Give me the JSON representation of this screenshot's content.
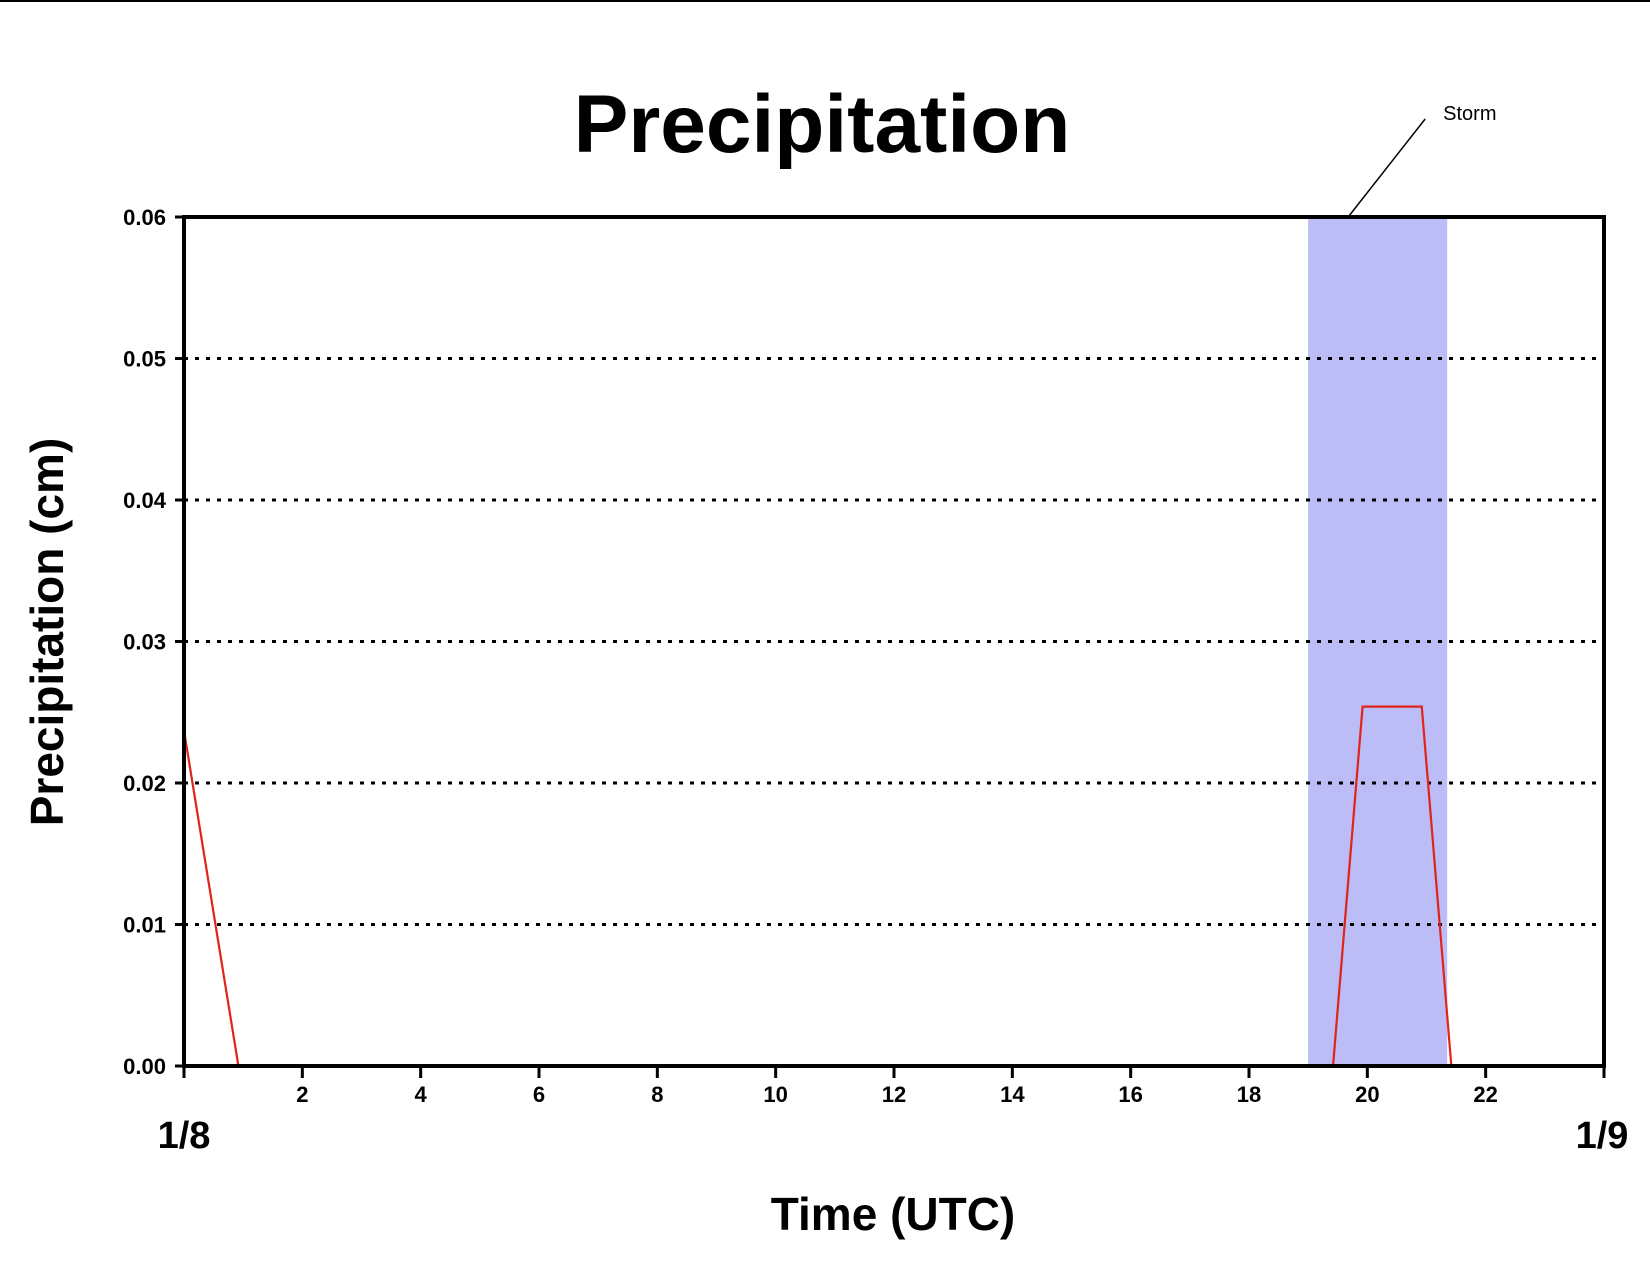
{
  "chart_data": {
    "type": "line",
    "title": "Precipitation",
    "xlabel": "Time (UTC)",
    "ylabel": "Precipitation (cm)",
    "xlim": [
      0,
      24
    ],
    "ylim": [
      0,
      0.06
    ],
    "x_ticks": [
      2,
      4,
      6,
      8,
      10,
      12,
      14,
      16,
      18,
      20,
      22
    ],
    "x_tick_labels": [
      "2",
      "4",
      "6",
      "8",
      "10",
      "12",
      "14",
      "16",
      "18",
      "20",
      "22"
    ],
    "y_ticks": [
      0,
      0.01,
      0.02,
      0.03,
      0.04,
      0.05,
      0.06
    ],
    "y_tick_labels": [
      "0.00",
      "0.01",
      "0.02",
      "0.03",
      "0.04",
      "0.05",
      "0.06"
    ],
    "date_labels": {
      "start": "1/8",
      "end": "1/9"
    },
    "grid": "horizontal dotted",
    "series": [
      {
        "color": "#e2231a",
        "x": [
          0,
          0.92,
          19.42,
          19.92,
          20.92,
          21.42,
          24
        ],
        "y": [
          0.0237,
          0,
          0,
          0.0254,
          0.0254,
          0,
          0
        ]
      }
    ],
    "shaded_region": {
      "label": "Storm",
      "x_start": 19.0,
      "x_end": 21.35,
      "color": "#bcbcf7"
    }
  }
}
